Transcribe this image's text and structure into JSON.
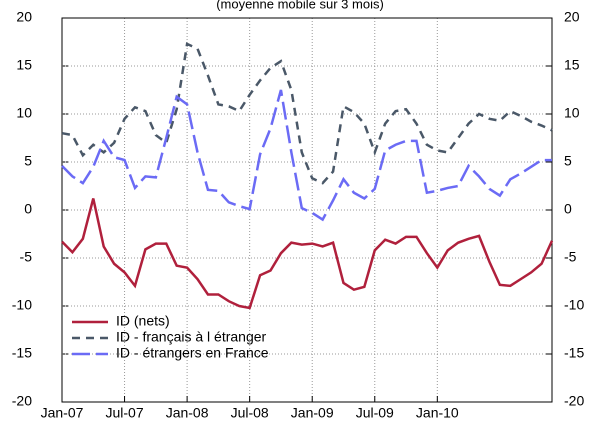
{
  "chart_data": {
    "type": "line",
    "subtitle": "(moyenne mobile sur 3 mois)",
    "categories": [
      "Jan-07",
      null,
      null,
      null,
      null,
      null,
      "Jul-07",
      null,
      null,
      null,
      null,
      null,
      "Jan-08",
      null,
      null,
      null,
      null,
      null,
      "Jul-08",
      null,
      null,
      null,
      null,
      null,
      "Jan-09",
      null,
      null,
      null,
      null,
      null,
      "Jul-09",
      null,
      null,
      null,
      null,
      null,
      "Jan-10",
      null,
      null,
      null,
      null,
      null,
      null,
      null,
      null,
      null,
      null,
      null
    ],
    "series": [
      {
        "name": "ID (nets)",
        "color": "#b0203c",
        "style": "solid",
        "values": [
          -3.3,
          -4.4,
          -3.0,
          1.2,
          -3.8,
          -5.6,
          -6.5,
          -7.9,
          -4.1,
          -3.5,
          -3.5,
          -5.8,
          -6.0,
          -7.2,
          -8.8,
          -8.8,
          -9.5,
          -10.0,
          -10.2,
          -6.8,
          -6.3,
          -4.5,
          -3.4,
          -3.6,
          -3.5,
          -3.8,
          -3.4,
          -7.6,
          -8.3,
          -8.0,
          -4.2,
          -3.1,
          -3.5,
          -2.8,
          -2.8,
          -4.5,
          -6.0,
          -4.2,
          -3.4,
          -3.0,
          -2.7,
          -5.4,
          -7.8,
          -7.9,
          -7.2,
          -6.5,
          -5.6,
          -3.2
        ]
      },
      {
        "name": "ID - français à l étranger",
        "color": "#4a5868",
        "style": "dashed",
        "values": [
          8.0,
          7.8,
          5.7,
          6.8,
          6.0,
          7.0,
          9.5,
          10.7,
          10.3,
          7.8,
          7.0,
          10.5,
          17.3,
          16.8,
          14.0,
          11.0,
          10.8,
          10.3,
          12.0,
          13.5,
          14.8,
          15.5,
          12.5,
          6.0,
          3.3,
          2.8,
          4.0,
          10.8,
          10.2,
          9.0,
          6.0,
          9.0,
          10.3,
          10.5,
          9.0,
          6.8,
          6.2,
          6.0,
          7.5,
          9.0,
          10.0,
          9.5,
          9.3,
          10.3,
          9.8,
          9.2,
          8.8,
          8.3
        ]
      },
      {
        "name": "ID - étrangers en  France",
        "color": "#6b6bf5",
        "style": "long-dashed",
        "values": [
          4.6,
          3.5,
          2.8,
          4.5,
          7.2,
          5.5,
          5.2,
          2.3,
          3.5,
          3.4,
          7.5,
          11.8,
          11.0,
          6.0,
          2.1,
          2.0,
          0.8,
          0.4,
          0.1,
          5.8,
          8.5,
          12.5,
          6.0,
          0.2,
          -0.3,
          -1.0,
          1.0,
          3.2,
          1.8,
          1.2,
          2.2,
          6.2,
          6.8,
          7.2,
          7.2,
          1.8,
          2.0,
          2.3,
          2.5,
          4.6,
          3.5,
          2.2,
          1.5,
          3.2,
          3.8,
          4.5,
          5.2,
          5.2
        ]
      }
    ],
    "ylim": [
      -20,
      20
    ],
    "yticks": [
      -20,
      -15,
      -10,
      -5,
      0,
      5,
      10,
      15,
      20
    ],
    "y2lim": [
      -20,
      20
    ],
    "y2ticks": [
      -20,
      -15,
      -10,
      -5,
      0,
      5,
      10,
      15,
      20
    ],
    "grid": true,
    "legend": "lower left"
  }
}
